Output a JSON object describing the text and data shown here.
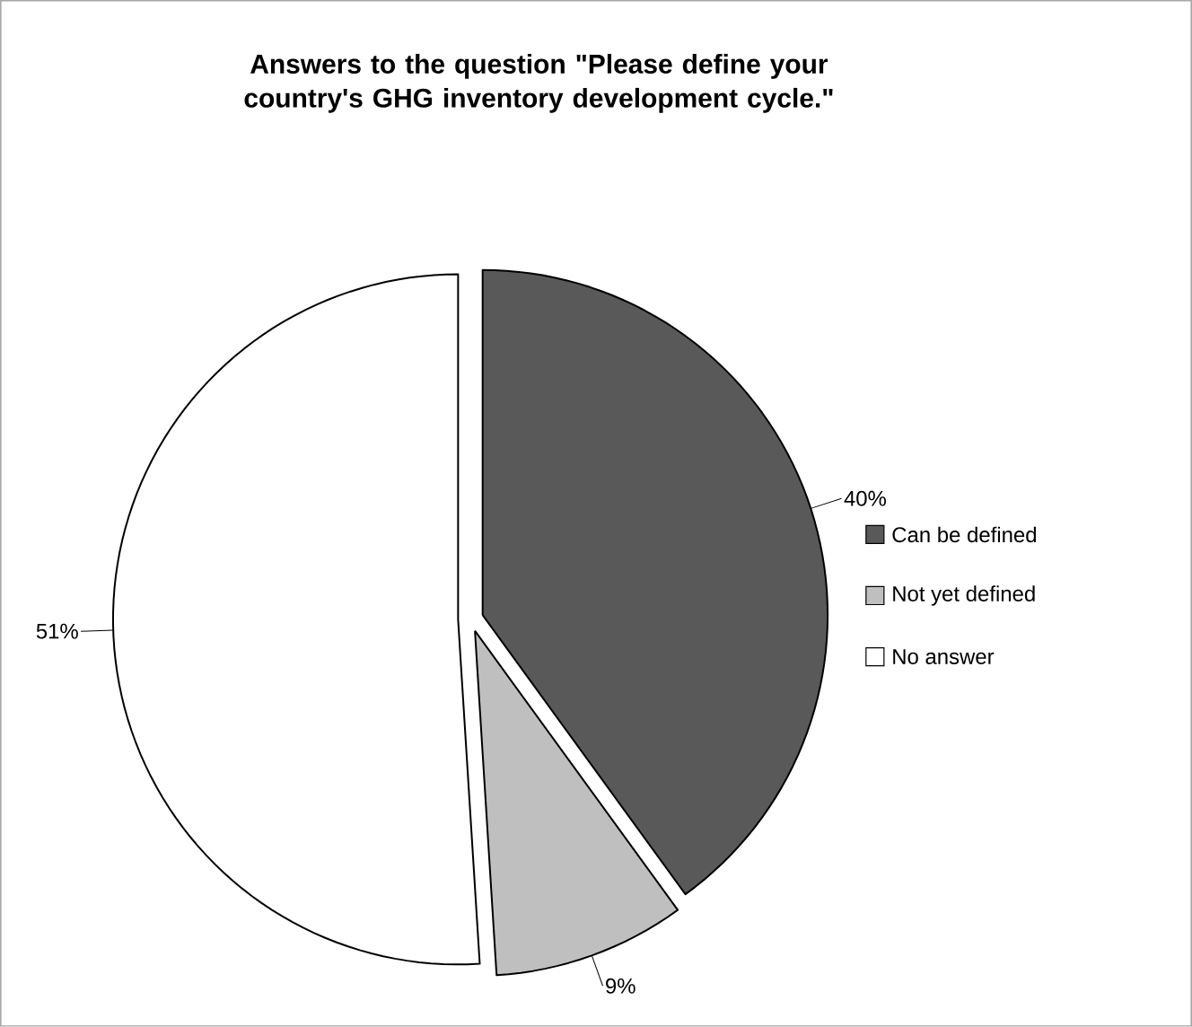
{
  "chart_data": {
    "type": "pie",
    "title": "Answers to the question \"Please define your country's GHG inventory development cycle.\"",
    "categories": [
      "Can be defined",
      "Not yet defined",
      "No answer"
    ],
    "values": [
      40,
      9,
      51
    ],
    "colors": [
      "#595959",
      "#bfbfbf",
      "#ffffff"
    ],
    "value_labels": [
      "40%",
      "9%",
      "51%"
    ],
    "legend": "right"
  }
}
